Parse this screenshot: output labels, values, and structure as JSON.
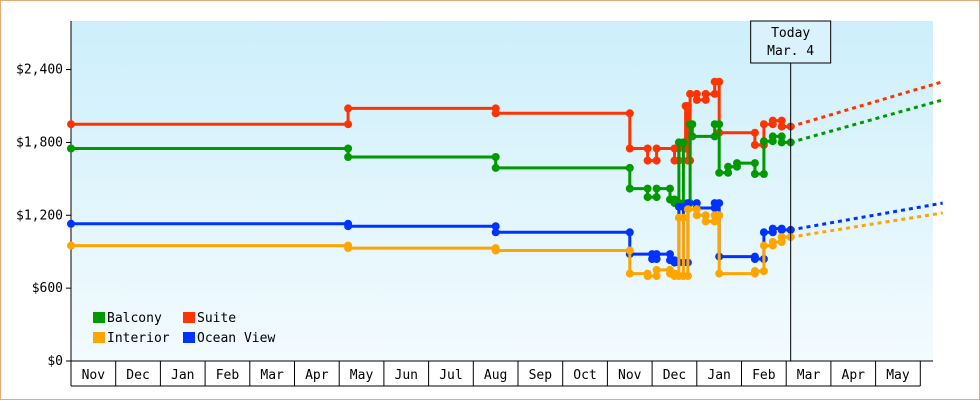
{
  "chart_data": {
    "type": "line",
    "y_ticks": [
      "$0",
      "$600",
      "$1,200",
      "$1,800",
      "$2,400"
    ],
    "y_tick_values": [
      0,
      600,
      1200,
      1800,
      2400
    ],
    "ylim": [
      0,
      2400
    ],
    "months": [
      "Nov",
      "Dec",
      "Jan",
      "Feb",
      "Mar",
      "Apr",
      "May",
      "Jun",
      "Jul",
      "Aug",
      "Sep",
      "Oct",
      "Nov",
      "Dec",
      "Jan",
      "Feb",
      "Mar",
      "Apr",
      "May"
    ],
    "today": {
      "label_line1": "Today",
      "label_line2": "Mar. 4",
      "x": 16.1
    },
    "legend": [
      "Balcony",
      "Suite",
      "Interior",
      "Ocean View"
    ],
    "series": [
      {
        "name": "Suite",
        "color": "#ff3300",
        "points": [
          [
            0,
            1950
          ],
          [
            6.2,
            1950
          ],
          [
            6.2,
            2080
          ],
          [
            9.5,
            2080
          ],
          [
            9.5,
            2040
          ],
          [
            12.5,
            2040
          ],
          [
            12.5,
            1750
          ],
          [
            12.9,
            1750
          ],
          [
            12.9,
            1650
          ],
          [
            13.1,
            1650
          ],
          [
            13.1,
            1750
          ],
          [
            13.5,
            1750
          ],
          [
            13.5,
            1650
          ],
          [
            13.6,
            1650
          ],
          [
            13.6,
            1750
          ],
          [
            13.75,
            1750
          ],
          [
            13.75,
            2100
          ],
          [
            13.8,
            2100
          ],
          [
            13.8,
            1650
          ],
          [
            13.85,
            1650
          ],
          [
            13.85,
            2200
          ],
          [
            14.0,
            2200
          ],
          [
            14.0,
            2150
          ],
          [
            14.2,
            2150
          ],
          [
            14.2,
            2200
          ],
          [
            14.4,
            2200
          ],
          [
            14.4,
            2300
          ],
          [
            14.5,
            2300
          ],
          [
            14.5,
            1880
          ],
          [
            15.3,
            1880
          ],
          [
            15.3,
            1780
          ],
          [
            15.5,
            1780
          ],
          [
            15.5,
            1950
          ],
          [
            15.7,
            1950
          ],
          [
            15.7,
            1980
          ],
          [
            15.9,
            1980
          ],
          [
            15.9,
            1930
          ],
          [
            16.1,
            1930
          ]
        ],
        "forecast": [
          [
            16.1,
            1930
          ],
          [
            19.5,
            2300
          ]
        ]
      },
      {
        "name": "Balcony",
        "color": "#009900",
        "points": [
          [
            0,
            1750
          ],
          [
            6.2,
            1750
          ],
          [
            6.2,
            1680
          ],
          [
            9.5,
            1680
          ],
          [
            9.5,
            1590
          ],
          [
            12.5,
            1590
          ],
          [
            12.5,
            1420
          ],
          [
            12.9,
            1420
          ],
          [
            12.9,
            1350
          ],
          [
            13.1,
            1350
          ],
          [
            13.1,
            1420
          ],
          [
            13.4,
            1420
          ],
          [
            13.4,
            1330
          ],
          [
            13.5,
            1330
          ],
          [
            13.5,
            1300
          ],
          [
            13.6,
            1300
          ],
          [
            13.6,
            1800
          ],
          [
            13.7,
            1800
          ],
          [
            13.7,
            1300
          ],
          [
            13.85,
            1300
          ],
          [
            13.85,
            1950
          ],
          [
            13.9,
            1950
          ],
          [
            13.9,
            1850
          ],
          [
            14.4,
            1850
          ],
          [
            14.4,
            1950
          ],
          [
            14.5,
            1950
          ],
          [
            14.5,
            1550
          ],
          [
            14.7,
            1550
          ],
          [
            14.7,
            1600
          ],
          [
            14.9,
            1600
          ],
          [
            14.9,
            1630
          ],
          [
            15.3,
            1630
          ],
          [
            15.3,
            1540
          ],
          [
            15.5,
            1540
          ],
          [
            15.5,
            1810
          ],
          [
            15.7,
            1810
          ],
          [
            15.7,
            1850
          ],
          [
            15.9,
            1850
          ],
          [
            15.9,
            1800
          ],
          [
            16.1,
            1800
          ]
        ],
        "forecast": [
          [
            16.1,
            1800
          ],
          [
            19.5,
            2150
          ]
        ]
      },
      {
        "name": "Ocean View",
        "color": "#0033ff",
        "points": [
          [
            0,
            1130
          ],
          [
            6.2,
            1130
          ],
          [
            6.2,
            1110
          ],
          [
            9.5,
            1110
          ],
          [
            9.5,
            1060
          ],
          [
            12.5,
            1060
          ],
          [
            12.5,
            880
          ],
          [
            13.0,
            880
          ],
          [
            13.0,
            840
          ],
          [
            13.1,
            840
          ],
          [
            13.1,
            880
          ],
          [
            13.4,
            880
          ],
          [
            13.4,
            830
          ],
          [
            13.5,
            830
          ],
          [
            13.5,
            810
          ],
          [
            13.6,
            810
          ],
          [
            13.6,
            1270
          ],
          [
            13.7,
            1270
          ],
          [
            13.7,
            810
          ],
          [
            13.8,
            810
          ],
          [
            13.8,
            1300
          ],
          [
            14.0,
            1300
          ],
          [
            14.0,
            1260
          ],
          [
            14.4,
            1260
          ],
          [
            14.4,
            1300
          ],
          [
            14.5,
            1300
          ],
          [
            14.5,
            860
          ],
          [
            15.3,
            860
          ],
          [
            15.3,
            840
          ],
          [
            15.5,
            840
          ],
          [
            15.5,
            1060
          ],
          [
            15.7,
            1060
          ],
          [
            15.7,
            1090
          ],
          [
            15.9,
            1090
          ],
          [
            15.9,
            1080
          ],
          [
            16.1,
            1080
          ]
        ],
        "forecast": [
          [
            16.1,
            1080
          ],
          [
            19.5,
            1300
          ]
        ]
      },
      {
        "name": "Interior",
        "color": "#ffa500",
        "points": [
          [
            0,
            950
          ],
          [
            6.2,
            950
          ],
          [
            6.2,
            930
          ],
          [
            9.5,
            930
          ],
          [
            9.5,
            910
          ],
          [
            12.5,
            910
          ],
          [
            12.5,
            720
          ],
          [
            12.9,
            720
          ],
          [
            12.9,
            700
          ],
          [
            13.1,
            700
          ],
          [
            13.1,
            750
          ],
          [
            13.4,
            750
          ],
          [
            13.4,
            720
          ],
          [
            13.5,
            720
          ],
          [
            13.5,
            700
          ],
          [
            13.6,
            700
          ],
          [
            13.6,
            1180
          ],
          [
            13.7,
            1180
          ],
          [
            13.7,
            700
          ],
          [
            13.8,
            700
          ],
          [
            13.8,
            1250
          ],
          [
            14.0,
            1250
          ],
          [
            14.0,
            1200
          ],
          [
            14.2,
            1200
          ],
          [
            14.2,
            1150
          ],
          [
            14.4,
            1150
          ],
          [
            14.4,
            1200
          ],
          [
            14.5,
            1200
          ],
          [
            14.5,
            720
          ],
          [
            15.3,
            720
          ],
          [
            15.3,
            740
          ],
          [
            15.5,
            740
          ],
          [
            15.5,
            950
          ],
          [
            15.7,
            950
          ],
          [
            15.7,
            980
          ],
          [
            15.9,
            980
          ],
          [
            15.9,
            1020
          ],
          [
            16.1,
            1020
          ]
        ],
        "forecast": [
          [
            16.1,
            1020
          ],
          [
            19.5,
            1220
          ]
        ]
      }
    ]
  }
}
